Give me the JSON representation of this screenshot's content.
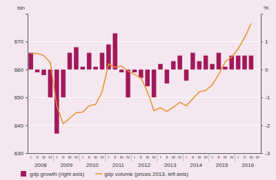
{
  "chart_data": {
    "type": "bar_line",
    "y_label": "bln",
    "y2_label": "%",
    "categories": [
      "I",
      "II",
      "III",
      "IV",
      "I",
      "II",
      "III",
      "IV",
      "I",
      "II",
      "III",
      "IV",
      "I",
      "II",
      "III",
      "IV",
      "I",
      "II",
      "III",
      "IV",
      "I",
      "II",
      "III",
      "IV",
      "I",
      "II",
      "III",
      "IV",
      "I",
      "II",
      "III",
      "IV",
      "I",
      "II",
      "III",
      "IV"
    ],
    "x_groups": [
      "2008",
      "2009",
      "2010",
      "2011",
      "2012",
      "2013",
      "2014",
      "2015",
      "2016"
    ],
    "series": [
      {
        "name": "gdp growth (right axis)",
        "type": "bar",
        "axis": "y2",
        "color": "#a2195b",
        "values": [
          0.6,
          -0.1,
          -0.2,
          -1.0,
          -2.3,
          -1.0,
          0.6,
          0.8,
          0.1,
          0.6,
          0.1,
          0.6,
          0.9,
          1.3,
          -0.1,
          -1.0,
          -0.1,
          -0.3,
          -0.6,
          -1.0,
          0.2,
          -0.5,
          0.3,
          0.5,
          -0.4,
          0.6,
          0.3,
          0.5,
          0.2,
          0.6,
          0.1,
          0.5,
          0.5,
          0.5,
          0.5,
          null
        ]
      },
      {
        "name": "gdp volume (prices 2013, left axis)",
        "type": "line",
        "color": "#e8902a",
        "values": [
          665.75,
          665.75,
          665,
          662.5,
          647,
          640.5,
          642.5,
          644.5,
          644.75,
          647,
          647.5,
          652,
          662,
          660.75,
          661.25,
          659.5,
          658.25,
          657,
          652,
          645.25,
          646.25,
          645,
          646.5,
          648.25,
          647,
          649.5,
          652,
          652.5,
          654.5,
          658.25,
          662.75,
          664.5,
          667.5,
          671.5,
          676.5,
          null
        ]
      }
    ],
    "ylim": [
      630,
      680
    ],
    "yticks": [
      630,
      640,
      650,
      660,
      670
    ],
    "y2lim": [
      -3,
      2
    ],
    "y2ticks": [
      -3,
      -2,
      -1,
      0,
      1
    ],
    "grid": true,
    "legend": "bottom"
  }
}
